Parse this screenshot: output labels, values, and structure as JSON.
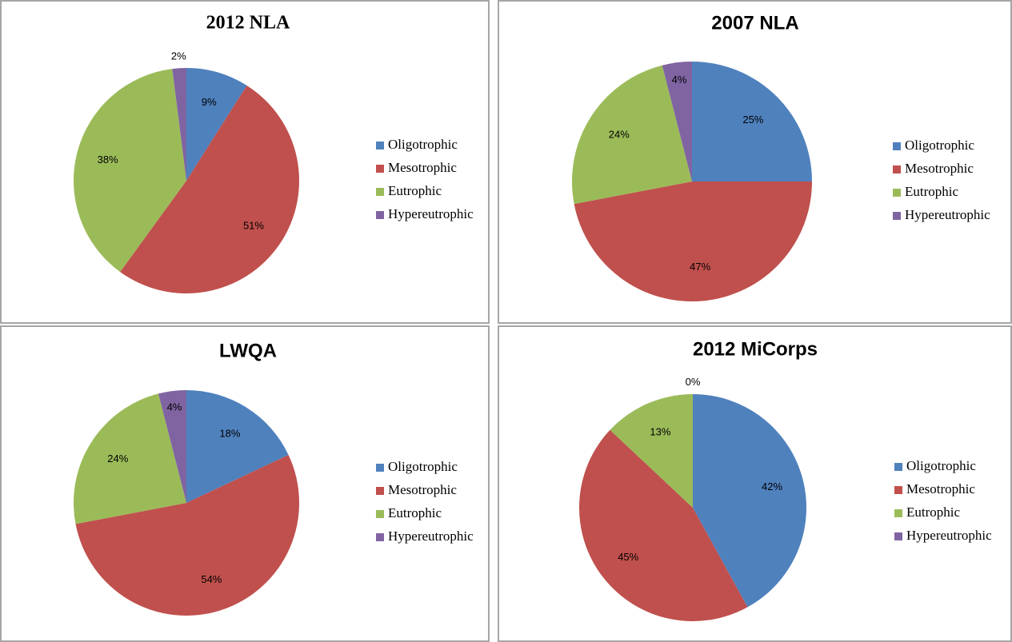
{
  "chart_data": [
    {
      "type": "pie",
      "title": "2012 NLA",
      "categories": [
        "Oligotrophic",
        "Mesotrophic",
        "Eutrophic",
        "Hypereutrophic"
      ],
      "values": [
        9,
        51,
        38,
        2
      ],
      "value_labels": [
        "9%",
        "51%",
        "38%",
        "2%"
      ],
      "colors": [
        "#4f81bd",
        "#c0504d",
        "#9bbb59",
        "#8064a2"
      ],
      "legend": "right"
    },
    {
      "type": "pie",
      "title": "2007 NLA",
      "categories": [
        "Oligotrophic",
        "Mesotrophic",
        "Eutrophic",
        "Hypereutrophic"
      ],
      "values": [
        25,
        47,
        24,
        4
      ],
      "value_labels": [
        "25%",
        "47%",
        "24%",
        "4%"
      ],
      "colors": [
        "#4f81bd",
        "#c0504d",
        "#9bbb59",
        "#8064a2"
      ],
      "legend": "right"
    },
    {
      "type": "pie",
      "title": "LWQA",
      "categories": [
        "Oligotrophic",
        "Mesotrophic",
        "Eutrophic",
        "Hypereutrophic"
      ],
      "values": [
        18,
        54,
        24,
        4
      ],
      "value_labels": [
        "18%",
        "54%",
        "24%",
        "4%"
      ],
      "colors": [
        "#4f81bd",
        "#c0504d",
        "#9bbb59",
        "#8064a2"
      ],
      "legend": "right"
    },
    {
      "type": "pie",
      "title": "2012 MiCorps",
      "categories": [
        "Oligotrophic",
        "Mesotrophic",
        "Eutrophic",
        "Hypereutrophic"
      ],
      "values": [
        42,
        45,
        13,
        0
      ],
      "value_labels": [
        "42%",
        "45%",
        "13%",
        "0%"
      ],
      "colors": [
        "#4f81bd",
        "#c0504d",
        "#9bbb59",
        "#8064a2"
      ],
      "legend": "right"
    }
  ]
}
